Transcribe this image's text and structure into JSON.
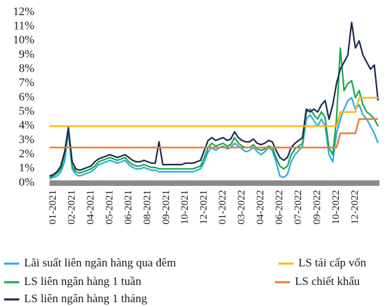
{
  "chart_data": {
    "type": "line",
    "categories": [
      null,
      "01-2021",
      null,
      null,
      null,
      null,
      "02-2021",
      null,
      null,
      null,
      null,
      "04-2021",
      null,
      null,
      null,
      null,
      "05-2021",
      null,
      null,
      null,
      null,
      "06-2021",
      null,
      null,
      null,
      null,
      "08-2021",
      null,
      null,
      null,
      null,
      "09-2021",
      null,
      null,
      null,
      null,
      "10-2021",
      null,
      null,
      null,
      null,
      "12-2021",
      null,
      null,
      null,
      null,
      "01-2022",
      null,
      null,
      null,
      null,
      "03-2022",
      null,
      null,
      null,
      null,
      "04-2022",
      null,
      null,
      null,
      null,
      "06-2022",
      null,
      null,
      null,
      null,
      "07-2022",
      null,
      null,
      null,
      null,
      "09-2022",
      null,
      null,
      null,
      null,
      "10-2022",
      null,
      null,
      null,
      null,
      "12-2022",
      null,
      null,
      null,
      null,
      null,
      null
    ],
    "ylim": [
      0,
      12
    ],
    "yticks": [
      {
        "value": 0,
        "label": "0%"
      },
      {
        "value": 1,
        "label": "1%"
      },
      {
        "value": 2,
        "label": "2%"
      },
      {
        "value": 3,
        "label": "3%"
      },
      {
        "value": 4,
        "label": "4%"
      },
      {
        "value": 5,
        "label": "5%"
      },
      {
        "value": 6,
        "label": "6%"
      },
      {
        "value": 7,
        "label": "7%"
      },
      {
        "value": 8,
        "label": "8%"
      },
      {
        "value": 9,
        "label": "9%"
      },
      {
        "value": 10,
        "label": "10%"
      },
      {
        "value": 11,
        "label": "11%"
      },
      {
        "value": 12,
        "label": "12%"
      }
    ],
    "series": [
      {
        "name": "Lãi suất liên ngân hàng qua đêm",
        "color": "#29abe2",
        "values": [
          0.3,
          0.4,
          0.5,
          0.8,
          1.5,
          3.6,
          1.0,
          0.6,
          0.5,
          0.6,
          0.7,
          0.8,
          1.0,
          1.3,
          1.4,
          1.5,
          1.6,
          1.5,
          1.4,
          1.5,
          1.6,
          1.3,
          1.1,
          1.0,
          1.0,
          1.1,
          1.0,
          0.9,
          0.9,
          0.8,
          0.8,
          0.8,
          0.8,
          0.8,
          0.8,
          0.8,
          0.8,
          0.8,
          0.8,
          0.9,
          1.0,
          1.5,
          2.2,
          2.5,
          2.3,
          2.5,
          2.6,
          2.4,
          2.5,
          2.8,
          2.6,
          2.4,
          2.2,
          2.3,
          2.5,
          2.2,
          2.0,
          2.2,
          2.5,
          2.3,
          1.5,
          0.5,
          0.4,
          0.6,
          1.5,
          2.0,
          2.3,
          2.6,
          4.5,
          4.8,
          4.4,
          4.0,
          4.5,
          4.0,
          2.0,
          1.5,
          3.5,
          4.5,
          5.2,
          5.8,
          6.0,
          5.2,
          5.5,
          4.8,
          4.5,
          4.0,
          3.5,
          2.8
        ]
      },
      {
        "name": "LS liên ngân hàng 1 tuần",
        "color": "#1aa64a",
        "values": [
          0.4,
          0.5,
          0.7,
          1.0,
          2.0,
          3.8,
          1.2,
          0.8,
          0.7,
          0.8,
          0.9,
          1.0,
          1.2,
          1.5,
          1.6,
          1.7,
          1.8,
          1.7,
          1.6,
          1.7,
          1.8,
          1.5,
          1.3,
          1.2,
          1.2,
          1.3,
          1.2,
          1.1,
          1.1,
          1.0,
          1.0,
          1.0,
          1.0,
          1.0,
          1.0,
          1.0,
          1.0,
          1.0,
          1.0,
          1.1,
          1.2,
          1.8,
          2.5,
          2.8,
          2.6,
          2.7,
          2.8,
          2.6,
          2.7,
          3.2,
          2.8,
          2.6,
          2.5,
          2.5,
          2.7,
          2.4,
          2.3,
          2.4,
          2.6,
          2.5,
          1.8,
          1.2,
          1.0,
          1.2,
          2.0,
          2.4,
          2.6,
          2.8,
          5.0,
          5.2,
          4.8,
          4.5,
          5.0,
          4.6,
          2.5,
          2.0,
          4.5,
          9.5,
          6.5,
          7.0,
          7.2,
          6.0,
          6.5,
          5.5,
          5.0,
          4.8,
          4.5,
          4.0
        ]
      },
      {
        "name": "LS liên ngân hàng 1 tháng",
        "color": "#1b2a4e",
        "values": [
          0.5,
          0.6,
          0.8,
          1.2,
          2.2,
          3.9,
          1.5,
          1.0,
          0.9,
          1.0,
          1.1,
          1.2,
          1.5,
          1.7,
          1.8,
          1.9,
          2.0,
          1.9,
          1.8,
          1.9,
          2.0,
          1.8,
          1.6,
          1.5,
          1.5,
          1.6,
          1.5,
          1.4,
          1.4,
          2.9,
          1.3,
          1.3,
          1.3,
          1.3,
          1.3,
          1.3,
          1.4,
          1.4,
          1.4,
          1.5,
          1.6,
          2.3,
          3.0,
          3.2,
          3.0,
          3.1,
          3.2,
          3.0,
          3.1,
          3.6,
          3.2,
          3.0,
          2.9,
          2.9,
          3.1,
          2.8,
          2.7,
          2.8,
          3.0,
          2.9,
          2.3,
          1.8,
          1.6,
          1.8,
          2.5,
          2.8,
          3.0,
          3.2,
          5.2,
          5.0,
          5.2,
          5.0,
          5.5,
          5.8,
          4.5,
          5.5,
          7.0,
          8.0,
          8.5,
          9.0,
          11.3,
          9.5,
          10.0,
          9.0,
          8.5,
          8.0,
          8.3,
          5.8
        ]
      },
      {
        "name": "LS tái cấp vốn",
        "color": "#fdb813",
        "values": [
          4,
          4,
          4,
          4,
          4,
          4,
          4,
          4,
          4,
          4,
          4,
          4,
          4,
          4,
          4,
          4,
          4,
          4,
          4,
          4,
          4,
          4,
          4,
          4,
          4,
          4,
          4,
          4,
          4,
          4,
          4,
          4,
          4,
          4,
          4,
          4,
          4,
          4,
          4,
          4,
          4,
          4,
          4,
          4,
          4,
          4,
          4,
          4,
          4,
          4,
          4,
          4,
          4,
          4,
          4,
          4,
          4,
          4,
          4,
          4,
          4,
          4,
          4,
          4,
          4,
          4,
          4,
          4,
          4,
          4,
          4,
          4,
          4,
          4,
          4,
          4,
          4,
          5,
          5,
          5,
          5,
          5,
          6,
          6,
          6,
          6,
          6,
          6
        ]
      },
      {
        "name": "LS chiết khấu",
        "color": "#f0792b",
        "values": [
          2.5,
          2.5,
          2.5,
          2.5,
          2.5,
          2.5,
          2.5,
          2.5,
          2.5,
          2.5,
          2.5,
          2.5,
          2.5,
          2.5,
          2.5,
          2.5,
          2.5,
          2.5,
          2.5,
          2.5,
          2.5,
          2.5,
          2.5,
          2.5,
          2.5,
          2.5,
          2.5,
          2.5,
          2.5,
          2.5,
          2.5,
          2.5,
          2.5,
          2.5,
          2.5,
          2.5,
          2.5,
          2.5,
          2.5,
          2.5,
          2.5,
          2.5,
          2.5,
          2.5,
          2.5,
          2.5,
          2.5,
          2.5,
          2.5,
          2.5,
          2.5,
          2.5,
          2.5,
          2.5,
          2.5,
          2.5,
          2.5,
          2.5,
          2.5,
          2.5,
          2.5,
          2.5,
          2.5,
          2.5,
          2.5,
          2.5,
          2.5,
          2.5,
          2.5,
          2.5,
          2.5,
          2.5,
          2.5,
          2.5,
          2.5,
          2.5,
          2.5,
          3.5,
          3.5,
          3.5,
          3.5,
          3.5,
          4.5,
          4.5,
          4.5,
          4.5,
          4.5,
          4.5
        ]
      }
    ]
  }
}
